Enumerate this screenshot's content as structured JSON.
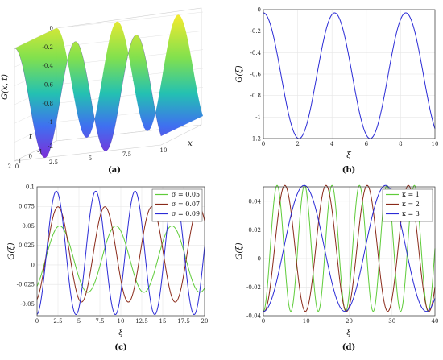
{
  "chart_data": [
    {
      "type": "surface",
      "panel_label": "(a)",
      "zlabel": "G(x, t)",
      "xlabel": "x",
      "tlabel": "t",
      "x_ticks": [
        "0",
        "2.5",
        "5",
        "7.5",
        "10"
      ],
      "t_ticks": [
        "2",
        "1",
        "0",
        "-1",
        "-2"
      ],
      "z_ticks": [
        "0",
        "-0.2",
        "-0.4",
        "-0.6",
        "-0.8",
        "-1"
      ],
      "zlim": [
        -1.2,
        0
      ],
      "xlim": [
        0,
        10
      ],
      "tlim": [
        -2,
        2
      ],
      "grid": true,
      "colormap": [
        "#7a2bd8",
        "#3b6df0",
        "#1fc0b0",
        "#7fe04a",
        "#f4ea2a"
      ],
      "amplitude": 0.6,
      "offset": -0.6,
      "wavelength_x": 4.15
    },
    {
      "type": "line",
      "panel_label": "(b)",
      "xlabel": "ξ",
      "ylabel": "G(ξ)",
      "xlim": [
        0,
        10
      ],
      "ylim": [
        -1.2,
        0
      ],
      "x_ticks": [
        "0",
        "2",
        "4",
        "6",
        "8",
        "10"
      ],
      "y_ticks": [
        "0",
        "-0.2",
        "-0.4",
        "-0.6",
        "-0.8",
        "-1",
        "-1.2"
      ],
      "grid": true,
      "series": [
        {
          "color": "#2b2bd6",
          "amplitude": 0.585,
          "offset": -0.615,
          "period": 4.15,
          "phase": 0.0
        }
      ]
    },
    {
      "type": "line",
      "panel_label": "(c)",
      "xlabel": "ξ",
      "ylabel": "G(ξ)",
      "xlim": [
        0,
        20
      ],
      "ylim": [
        -0.065,
        0.1
      ],
      "x_ticks": [
        "0",
        "2.5",
        "5",
        "7.5",
        "10",
        "12.5",
        "15",
        "17.5",
        "20"
      ],
      "y_ticks": [
        "0.1",
        "0.075",
        "0.05",
        "0.025",
        "0",
        "-0.025",
        "-0.05"
      ],
      "grid": true,
      "legend": "top-right",
      "series": [
        {
          "name": "σ = 0.05",
          "color": "#5fcc3a",
          "amplitude": 0.0425,
          "offset": 0.0075,
          "period": 6.7,
          "xpeak": 2.7
        },
        {
          "name": "σ = 0.07",
          "color": "#8a2a1a",
          "amplitude": 0.061,
          "offset": 0.0135,
          "period": 5.6,
          "xpeak": 2.5
        },
        {
          "name": "σ = 0.09",
          "color": "#2b2bd6",
          "amplitude": 0.079,
          "offset": 0.0155,
          "period": 4.7,
          "xpeak": 2.3
        }
      ]
    },
    {
      "type": "line",
      "panel_label": "(d)",
      "xlabel": "ξ",
      "ylabel": "G(ξ)",
      "xlim": [
        0,
        40
      ],
      "ylim": [
        -0.04,
        0.05
      ],
      "x_ticks": [
        "0",
        "10",
        "20",
        "30",
        "40"
      ],
      "y_ticks": [
        "0.04",
        "0.02",
        "0",
        "-0.02",
        "-0.04"
      ],
      "grid": true,
      "legend": "top-right",
      "series": [
        {
          "name": "κ = 1",
          "color": "#5fcc3a",
          "amplitude": 0.044,
          "offset": 0.007,
          "period": 6.4,
          "xpeak": 3.2
        },
        {
          "name": "κ = 2",
          "color": "#8a2a1a",
          "amplitude": 0.044,
          "offset": 0.007,
          "period": 9.6,
          "xpeak": 5.0
        },
        {
          "name": "κ = 3",
          "color": "#2b2bd6",
          "amplitude": 0.044,
          "offset": 0.007,
          "period": 19.0,
          "xpeak": 9.5
        }
      ]
    }
  ]
}
